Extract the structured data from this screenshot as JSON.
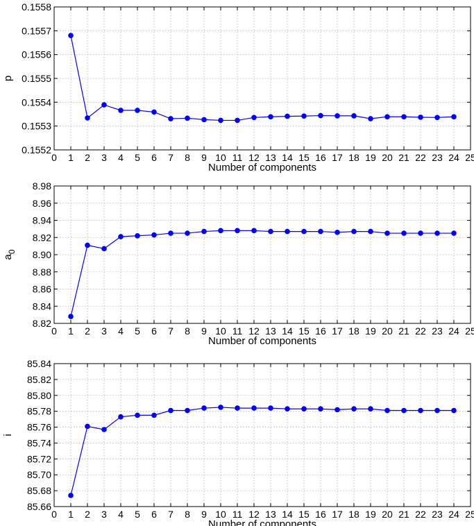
{
  "chart_data": [
    {
      "type": "line",
      "ylabel": "p",
      "xlabel": "Number of components",
      "xlim": [
        0,
        25
      ],
      "ylim": [
        0.1552,
        0.1558
      ],
      "xticks": [
        "0",
        "1",
        "2",
        "3",
        "4",
        "5",
        "6",
        "7",
        "8",
        "9",
        "10",
        "11",
        "12",
        "13",
        "14",
        "15",
        "16",
        "17",
        "18",
        "19",
        "20",
        "21",
        "22",
        "23",
        "24",
        "25"
      ],
      "yticks": [
        "0.1552",
        "0.1553",
        "0.1554",
        "0.1555",
        "0.1556",
        "0.1557",
        "0.1558"
      ],
      "grid": true,
      "x": [
        1,
        2,
        3,
        4,
        5,
        6,
        7,
        8,
        9,
        10,
        11,
        12,
        13,
        14,
        15,
        16,
        17,
        18,
        19,
        20,
        21,
        22,
        23,
        24
      ],
      "series": [
        {
          "color": "#0000ff",
          "values": [
            0.15568,
            0.155334,
            0.155389,
            0.155366,
            0.155366,
            0.155359,
            0.155331,
            0.155333,
            0.155327,
            0.155324,
            0.155324,
            0.155336,
            0.155339,
            0.155341,
            0.155342,
            0.155344,
            0.155343,
            0.155343,
            0.155331,
            0.155339,
            0.155339,
            0.155337,
            0.155336,
            0.155339
          ]
        }
      ]
    },
    {
      "type": "line",
      "ylabel": "a",
      "ylabel_subscript": "0",
      "xlabel": "Number of components",
      "xlim": [
        0,
        25
      ],
      "ylim": [
        8.82,
        8.98
      ],
      "xticks": [
        "0",
        "1",
        "2",
        "3",
        "4",
        "5",
        "6",
        "7",
        "8",
        "9",
        "10",
        "11",
        "12",
        "13",
        "14",
        "15",
        "16",
        "17",
        "18",
        "19",
        "20",
        "21",
        "22",
        "23",
        "24",
        "25"
      ],
      "yticks": [
        "8.82",
        "8.84",
        "8.86",
        "8.88",
        "8.90",
        "8.92",
        "8.94",
        "8.96",
        "8.98"
      ],
      "grid": true,
      "x": [
        1,
        2,
        3,
        4,
        5,
        6,
        7,
        8,
        9,
        10,
        11,
        12,
        13,
        14,
        15,
        16,
        17,
        18,
        19,
        20,
        21,
        22,
        23,
        24
      ],
      "series": [
        {
          "color": "#0000ff",
          "values": [
            8.828,
            8.911,
            8.907,
            8.921,
            8.922,
            8.923,
            8.925,
            8.925,
            8.927,
            8.928,
            8.928,
            8.928,
            8.927,
            8.927,
            8.927,
            8.927,
            8.926,
            8.927,
            8.927,
            8.925,
            8.925,
            8.925,
            8.925,
            8.925
          ]
        }
      ]
    },
    {
      "type": "line",
      "ylabel": "i",
      "xlabel": "Number of components",
      "xlim": [
        0,
        25
      ],
      "ylim": [
        85.66,
        85.84
      ],
      "xticks": [
        "0",
        "1",
        "2",
        "3",
        "4",
        "5",
        "6",
        "7",
        "8",
        "9",
        "10",
        "11",
        "12",
        "13",
        "14",
        "15",
        "16",
        "17",
        "18",
        "19",
        "20",
        "21",
        "22",
        "23",
        "24",
        "25"
      ],
      "yticks": [
        "85.66",
        "85.68",
        "85.70",
        "85.72",
        "85.74",
        "85.76",
        "85.78",
        "85.80",
        "85.82",
        "85.84"
      ],
      "grid": true,
      "x": [
        1,
        2,
        3,
        4,
        5,
        6,
        7,
        8,
        9,
        10,
        11,
        12,
        13,
        14,
        15,
        16,
        17,
        18,
        19,
        20,
        21,
        22,
        23,
        24
      ],
      "series": [
        {
          "color": "#0000ff",
          "values": [
            85.674,
            85.761,
            85.757,
            85.773,
            85.775,
            85.775,
            85.781,
            85.781,
            85.784,
            85.785,
            85.784,
            85.784,
            85.784,
            85.783,
            85.783,
            85.783,
            85.782,
            85.783,
            85.783,
            85.781,
            85.781,
            85.781,
            85.781,
            85.781
          ]
        }
      ]
    }
  ]
}
